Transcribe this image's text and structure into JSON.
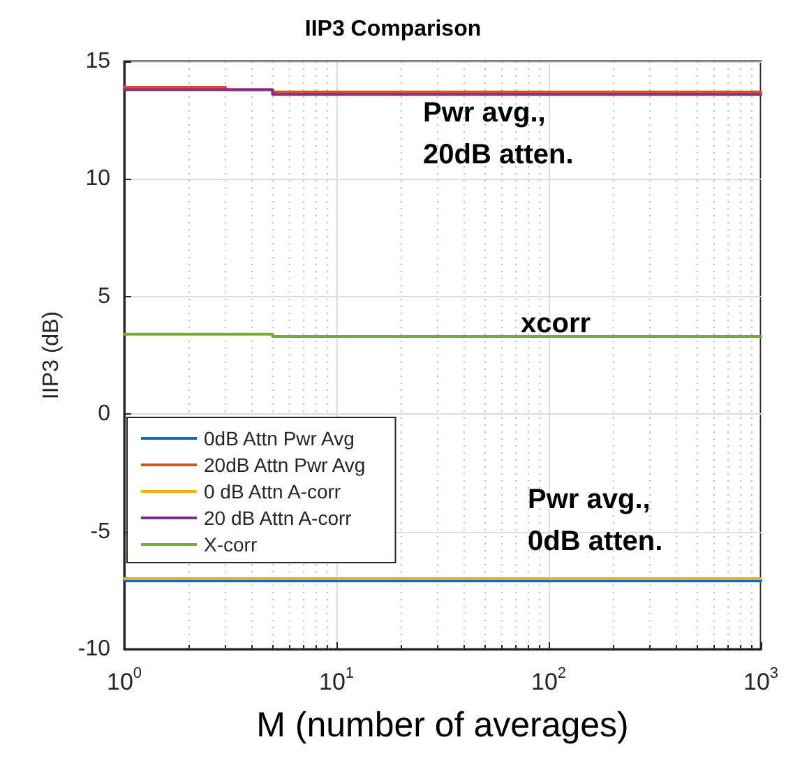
{
  "chart_data": {
    "type": "line",
    "title": "IIP3 Comparison",
    "xlabel": "M (number of averages)",
    "ylabel": "IIP3 (dB)",
    "log": "x",
    "xlim": [
      1,
      1000
    ],
    "xticks": [
      {
        "value": 1,
        "label": "10$^{0}$"
      },
      {
        "value": 10,
        "label": "10$^{1}$"
      },
      {
        "value": 100,
        "label": "10$^{2}$"
      },
      {
        "value": 1000,
        "label": "10$^{3}$"
      }
    ],
    "ylim": [
      -10,
      15
    ],
    "yticks": [
      -10,
      -5,
      0,
      5,
      10,
      15
    ],
    "grid": true,
    "legend": "bottom left",
    "marker": "none",
    "line_style": "solid",
    "series": [
      {
        "name": "0dB Attn Pwr Avg",
        "color": "#0072bd",
        "x": [
          1,
          1000
        ],
        "values": [
          -7.1,
          -7.1
        ]
      },
      {
        "name": "20dB Attn Pwr Avg",
        "color": "#d95319",
        "x": [
          1,
          3,
          3,
          5,
          5,
          1000
        ],
        "values": [
          13.9,
          13.9,
          13.8,
          13.8,
          13.7,
          13.7
        ]
      },
      {
        "name": "0 dB Attn A-corr",
        "color": "#edb120",
        "x": [
          1,
          1000
        ],
        "values": [
          -7.0,
          -7.0
        ]
      },
      {
        "name": "20 dB Attn A-corr",
        "color": "#7e2f8e",
        "x": [
          1,
          5,
          5,
          1000
        ],
        "values": [
          13.8,
          13.8,
          13.6,
          13.6
        ]
      },
      {
        "name": "X-corr",
        "color": "#77ac30",
        "x": [
          1,
          5,
          5,
          1000
        ],
        "values": [
          3.4,
          3.4,
          3.3,
          3.3
        ]
      }
    ],
    "annotations": [
      "Pwr avg.,\n20dB atten.",
      "xcorr",
      "Pwr avg.,\n0dB atten."
    ]
  }
}
